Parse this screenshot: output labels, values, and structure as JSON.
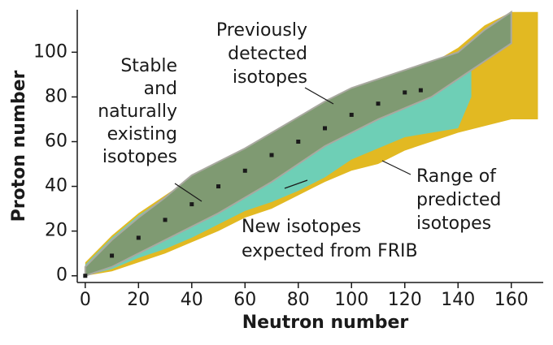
{
  "chart_data": {
    "type": "band",
    "x_label": "Neutron number",
    "y_label": "Proton number",
    "xlim": [
      -3,
      172
    ],
    "ylim": [
      -3,
      119
    ],
    "xticks": [
      0,
      20,
      40,
      60,
      80,
      100,
      120,
      140,
      160
    ],
    "yticks": [
      0,
      20,
      40,
      60,
      80,
      100
    ],
    "series": [
      {
        "label": [
          "Range of",
          "predicted",
          "isotopes"
        ],
        "color": "#e2b922",
        "x": [
          0,
          10,
          20,
          30,
          40,
          50,
          60,
          70,
          80,
          90,
          100,
          110,
          120,
          130,
          140,
          150,
          160,
          170
        ],
        "lower": [
          0,
          2,
          6,
          10,
          15,
          20,
          26,
          30,
          36,
          42,
          47,
          50,
          56,
          60,
          64,
          67,
          70,
          70
        ],
        "upper": [
          6,
          18,
          28,
          36,
          44,
          50,
          56,
          63,
          70,
          76,
          82,
          86,
          90,
          95,
          102,
          112,
          118,
          118
        ]
      },
      {
        "label": [
          "New isotopes",
          "expected from FRIB"
        ],
        "color": "#6ecfb6",
        "x": [
          0,
          10,
          20,
          30,
          40,
          50,
          60,
          70,
          80,
          90,
          100,
          110,
          120,
          130,
          140,
          145
        ],
        "lower": [
          0,
          3,
          8,
          12,
          17,
          23,
          29,
          33,
          38,
          44,
          52,
          57,
          62,
          64,
          66,
          80
        ],
        "upper": [
          5,
          17,
          27,
          35,
          44,
          50,
          56,
          62,
          69,
          76,
          82,
          86,
          90,
          94,
          97,
          98
        ]
      },
      {
        "label": [
          "Previously",
          "detected",
          "isotopes"
        ],
        "color": "#7f9a72",
        "x": [
          0,
          10,
          20,
          30,
          40,
          50,
          60,
          70,
          80,
          90,
          100,
          110,
          120,
          130,
          140,
          150,
          160
        ],
        "lower": [
          0,
          4,
          10,
          16,
          22,
          28,
          35,
          42,
          50,
          58,
          64,
          70,
          75,
          80,
          88,
          96,
          104
        ],
        "upper": [
          4,
          16,
          26,
          35,
          45,
          51,
          57,
          64,
          71,
          78,
          84,
          88,
          92,
          96,
          100,
          110,
          118
        ]
      }
    ],
    "stable": {
      "label": [
        "Stable",
        "and",
        "naturally",
        "existing",
        "isotopes"
      ],
      "color": "#1a1a1a",
      "x": [
        0,
        10,
        20,
        30,
        40,
        50,
        60,
        70,
        80,
        90,
        100,
        110,
        120,
        126
      ],
      "y": [
        0,
        9,
        17,
        25,
        32,
        40,
        47,
        54,
        60,
        66,
        72,
        77,
        82,
        83
      ]
    }
  }
}
